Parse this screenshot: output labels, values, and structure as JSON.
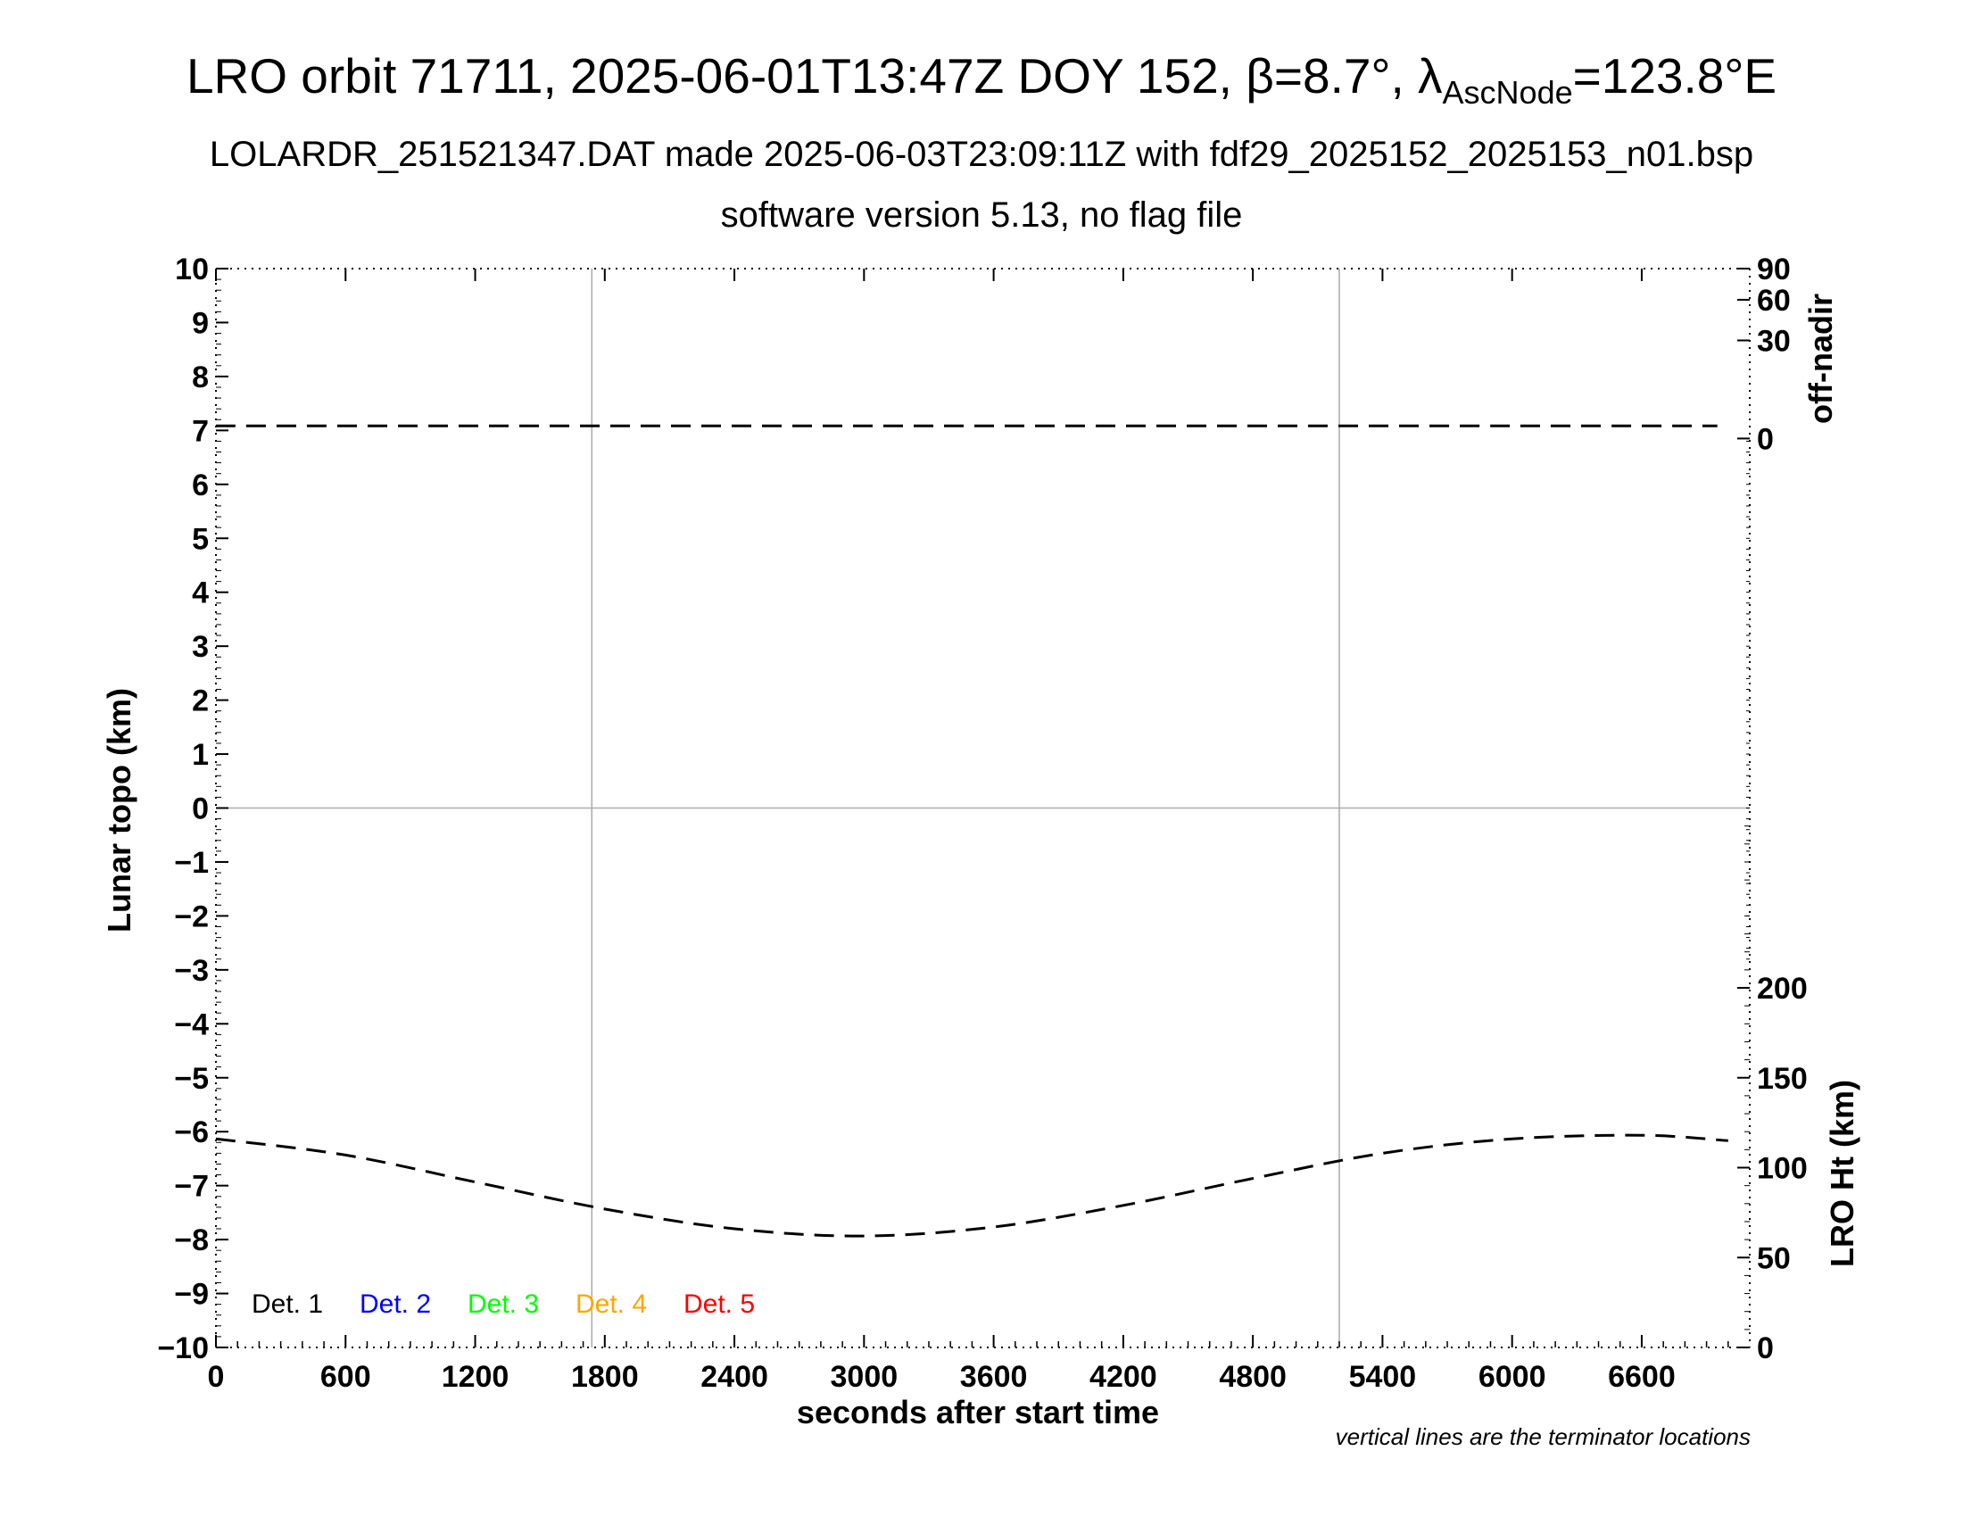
{
  "title": {
    "prefix": "LRO orbit 71711, 2025-06-01T13:47Z DOY 152, ",
    "beta": "β=8.7°, ",
    "lambda": "λ",
    "lambda_sub": "AscNode",
    "suffix": "=123.8°E",
    "line2": "LOLARDR_251521347.DAT made 2025-06-03T23:09:11Z with fdf29_2025152_2025153_n01.bsp",
    "line3": "software version 5.13, no flag file"
  },
  "footnote": "vertical lines are the terminator locations",
  "chart_data": {
    "type": "line",
    "xlabel": "seconds after start time",
    "ylabel": "Lunar topo (km)",
    "y2label_top": "off-nadir",
    "y2label_bottom": "LRO Ht (km)",
    "xlim": [
      0,
      7100
    ],
    "ylim": [
      -10,
      10
    ],
    "x_ticks": [
      0,
      600,
      1200,
      1800,
      2400,
      3000,
      3600,
      4200,
      4800,
      5400,
      6000,
      6600
    ],
    "x_tick_labels": [
      "0",
      "600",
      "1200",
      "1800",
      "2400",
      "3000",
      "3600",
      "4200",
      "4800",
      "5400",
      "6000",
      "6600"
    ],
    "y_ticks": [
      10,
      9,
      8,
      7,
      6,
      5,
      4,
      3,
      2,
      1,
      0,
      -1,
      -2,
      -3,
      -4,
      -5,
      -6,
      -7,
      -8,
      -9,
      -10
    ],
    "y_tick_labels": [
      "10",
      "9",
      "8",
      "7",
      "6",
      "5",
      "4",
      "3",
      "2",
      "1",
      "0",
      "−1",
      "−2",
      "−3",
      "−4",
      "−5",
      "−6",
      "−7",
      "−8",
      "−9",
      "−10"
    ],
    "off_nadir_axis": {
      "ticks": [
        0,
        30,
        60,
        90
      ],
      "tick_labels": [
        "0",
        "30",
        "60",
        "90"
      ],
      "note": "nonlinear scale, 0 at topo 6.85 km, 90 at topo 10 km"
    },
    "lro_ht_axis": {
      "ticks": [
        0,
        50,
        100,
        150,
        200
      ],
      "tick_labels": [
        "0",
        "50",
        "100",
        "150",
        "200"
      ],
      "range_km": [
        0,
        300
      ],
      "note": "0 km at topo -10, 300 km at topo 0"
    },
    "terminator_lines_x": [
      1740,
      5200
    ],
    "legend": [
      {
        "label": "Det. 1",
        "color": "#000000"
      },
      {
        "label": "Det. 2",
        "color": "#0000ff"
      },
      {
        "label": "Det. 3",
        "color": "#00ff00"
      },
      {
        "label": "Det. 4",
        "color": "#ffa500"
      },
      {
        "label": "Det. 5",
        "color": "#ff0000"
      }
    ],
    "series": [
      {
        "name": "off-nadir",
        "axis": "off-nadir",
        "x": [
          0,
          1000,
          2000,
          3000,
          4000,
          5000,
          6000,
          6950
        ],
        "values": [
          0.5,
          0.5,
          0.5,
          0.5,
          0.5,
          0.5,
          0.5,
          0.5
        ],
        "color": "#000000",
        "style": "dashed"
      },
      {
        "name": "LRO Ht",
        "axis": "LRO Ht (km)",
        "x": [
          0,
          600,
          1200,
          1800,
          2400,
          3000,
          3600,
          4200,
          4800,
          5400,
          6000,
          6600,
          7000
        ],
        "values": [
          116,
          107,
          92,
          77,
          66,
          62,
          67,
          79,
          94,
          108,
          116,
          118,
          115
        ],
        "color": "#000000",
        "style": "dashed"
      }
    ]
  }
}
